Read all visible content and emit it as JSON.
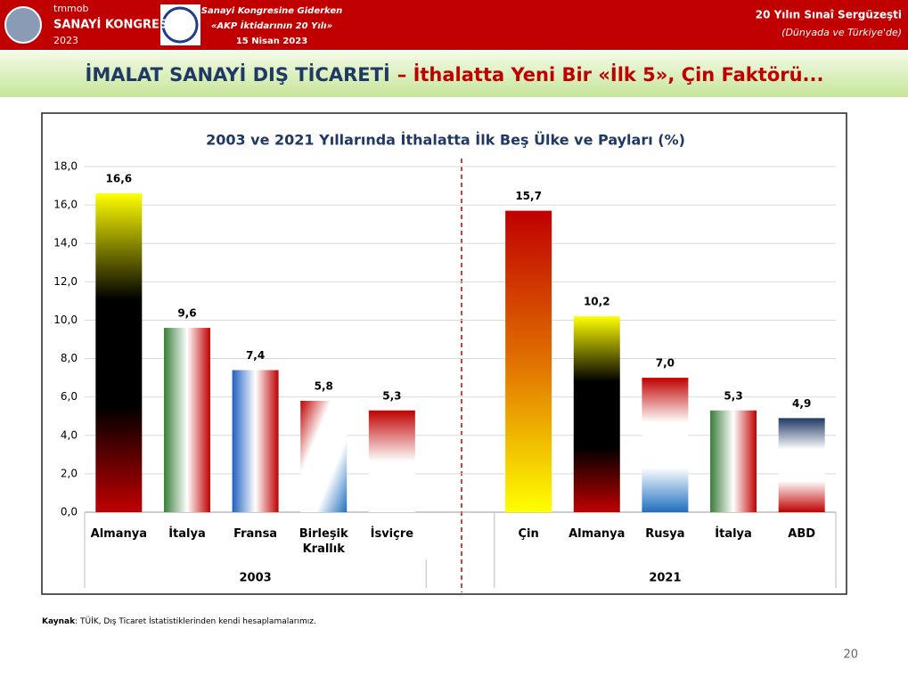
{
  "header": {
    "org": "tmmob",
    "congress": "SANAYİ KONGRESİ",
    "year": "2023",
    "tagline1": "Sanayi Kongresine Giderken",
    "tagline2": "«AKP İktidarının 20 Yılı»",
    "date": "15 Nisan 2023",
    "series_title": "20 Yılın Sınaî Sergüzeşti",
    "series_subtitle": "(Dünyada ve Türkiye'de)"
  },
  "slide_title": {
    "main": "İMALAT SANAYİ DIŞ TİCARETİ",
    "sub": "– İthalatta Yeni Bir «İlk 5», Çin Faktörü..."
  },
  "chart_data": {
    "type": "bar",
    "title": "2003 ve 2021 Yıllarında İthalatta İlk Beş Ülke ve  Payları (%)",
    "categories": [
      "Almanya",
      "İtalya",
      "Fransa",
      "Birleşik Krallık",
      "İsviçre",
      null,
      "Çin",
      "Almanya",
      "Rusya",
      "İtalya",
      "ABD"
    ],
    "values": [
      16.6,
      9.6,
      7.4,
      5.8,
      5.3,
      null,
      15.7,
      10.2,
      7.0,
      5.3,
      4.9
    ],
    "value_labels": [
      "16,6",
      "9,6",
      "7,4",
      "5,8",
      "5,3",
      null,
      "15,7",
      "10,2",
      "7,0",
      "5,3",
      "4,9"
    ],
    "groups": [
      "2003",
      "2021"
    ],
    "colors": [
      [
        "#ffff00",
        "#000000",
        "#000000",
        "#c00000"
      ],
      [
        "#3a7d3a",
        "#ffffff",
        "#c00000"
      ],
      [
        "#1f5fbf",
        "#ffffff",
        "#c00000"
      ],
      [
        "#c00000",
        "#ffffff",
        "#ffffff",
        "#1f6fbf"
      ],
      [
        "#c00000",
        "#ffffff",
        "#ffffff"
      ],
      null,
      [
        "#c00000",
        "#e07000",
        "#ffff00"
      ],
      [
        "#ffff00",
        "#000000",
        "#000000",
        "#c00000"
      ],
      [
        "#c00000",
        "#ffffff",
        "#ffffff",
        "#1f6fbf"
      ],
      [
        "#3a7d3a",
        "#ffffff",
        "#c00000"
      ],
      [
        "#1f3864",
        "#ffffff",
        "#ffffff",
        "#c00000"
      ]
    ],
    "gradient_directions": [
      "vertical",
      "horizontal",
      "horizontal",
      "diagonal",
      "vertical",
      null,
      "vertical",
      "vertical",
      "vertical",
      "horizontal",
      "vertical"
    ],
    "ylim": [
      0,
      18
    ],
    "yticks": [
      {
        "value": 0,
        "label": "0,0"
      },
      {
        "value": 2,
        "label": "2,0"
      },
      {
        "value": 4,
        "label": "4,0"
      },
      {
        "value": 6,
        "label": "6,0"
      },
      {
        "value": 8,
        "label": "8,0"
      },
      {
        "value": 10,
        "label": "10,0"
      },
      {
        "value": 12,
        "label": "12,0"
      },
      {
        "value": 14,
        "label": "14,0"
      },
      {
        "value": 16,
        "label": "16,0"
      },
      {
        "value": 18,
        "label": "18,0"
      }
    ],
    "grid": true
  },
  "source": {
    "label": "Kaynak",
    "text": ": TÜİK, Dış Ticaret İstatistiklerinden kendi hesaplamalarımız."
  },
  "page_number": "20"
}
